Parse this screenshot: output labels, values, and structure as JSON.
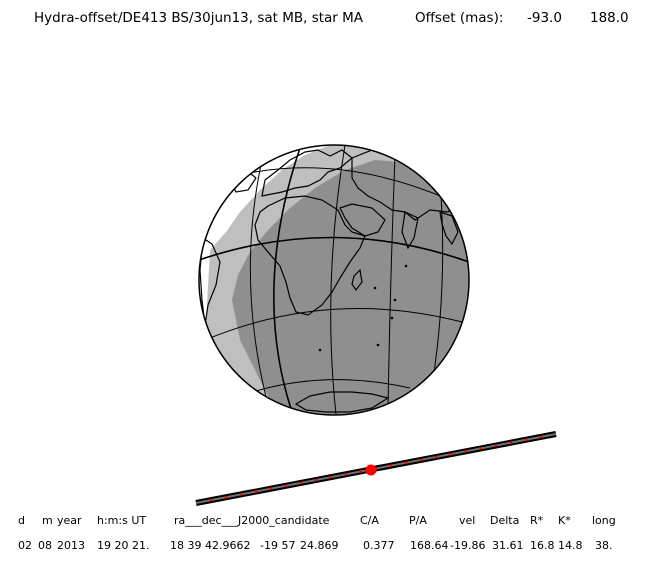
{
  "header": {
    "title": "Hydra-offset/DE413 BS/30jun13, sat MB, star MA",
    "offset_label": "Offset (mas):",
    "offset_x": "-93.0",
    "offset_y": "188.0"
  },
  "colors": {
    "night_shade": "#bfbfbf",
    "umbra_shade": "#8f8f8f",
    "outline": "#000000",
    "track_center": "#ff0000",
    "track_dots": "#ff0000"
  },
  "table": {
    "headers": [
      "d",
      "m",
      "year",
      "h:m:s UT",
      "ra___dec___J2000_candidate",
      "C/A",
      "P/A",
      "vel",
      "Delta",
      "R*",
      "K*",
      "long"
    ],
    "values": [
      "02",
      "08",
      "2013",
      "19 20 21.",
      "18 39 42.9662",
      "-19 57",
      "24.869",
      "0.377",
      "168.64",
      "-19.86",
      "31.61",
      "16.8",
      "14.8",
      "38."
    ]
  }
}
